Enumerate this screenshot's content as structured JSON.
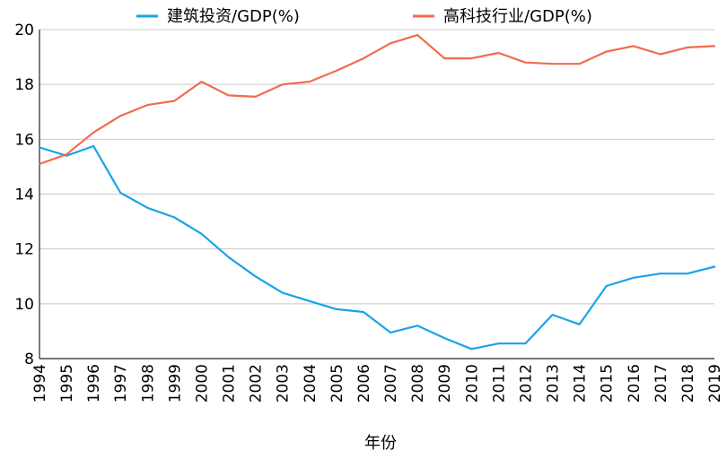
{
  "chart_data": {
    "type": "line",
    "title": "",
    "xlabel": "年份",
    "ylabel": "",
    "ylim": [
      8,
      20
    ],
    "yticks": [
      8,
      10,
      12,
      14,
      16,
      18,
      20
    ],
    "grid": true,
    "legend_position": "top-center",
    "categories": [
      "1994",
      "1995",
      "1996",
      "1997",
      "1998",
      "1999",
      "2000",
      "2001",
      "2002",
      "2003",
      "2004",
      "2005",
      "2006",
      "2007",
      "2008",
      "2009",
      "2010",
      "2011",
      "2012",
      "2013",
      "2014",
      "2015",
      "2016",
      "2017",
      "2018",
      "2019"
    ],
    "series": [
      {
        "name": "建筑投资/GDP(%)",
        "color": "#1aa3e8",
        "values": [
          15.7,
          15.4,
          15.75,
          14.05,
          13.5,
          13.15,
          12.55,
          11.7,
          11.0,
          10.4,
          10.1,
          9.8,
          9.7,
          8.95,
          9.2,
          8.75,
          8.35,
          8.55,
          8.55,
          9.6,
          9.25,
          10.65,
          10.95,
          11.1,
          11.1,
          11.35
        ]
      },
      {
        "name": "高科技行业/GDP(%)",
        "color": "#f26b4f",
        "values": [
          15.1,
          15.45,
          16.25,
          16.85,
          17.25,
          17.4,
          18.1,
          17.6,
          17.55,
          18.0,
          18.1,
          18.5,
          18.95,
          19.5,
          19.8,
          18.95,
          18.95,
          19.15,
          18.8,
          18.75,
          18.75,
          19.2,
          19.4,
          19.1,
          19.35,
          19.4
        ]
      }
    ]
  }
}
